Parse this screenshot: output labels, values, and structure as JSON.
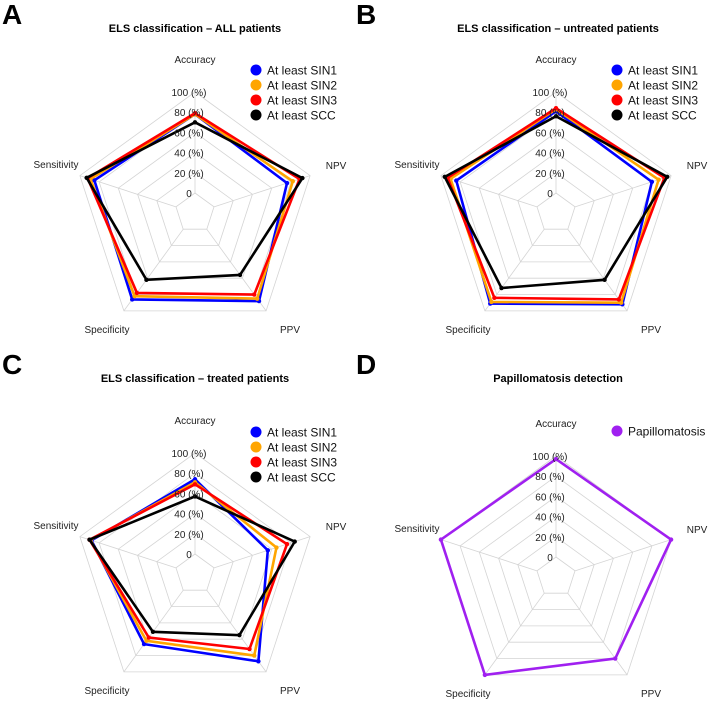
{
  "chart_data": [
    {
      "type": "radar",
      "panel_letter": "A",
      "title": "ELS classification – ALL patients",
      "axes": [
        "Accuracy",
        "NPV",
        "PPV",
        "Specificity",
        "Sensitivity"
      ],
      "tick_labels": [
        "0",
        "20 (%)",
        "40 (%)",
        "60 (%)",
        "80 (%)",
        "100 (%)"
      ],
      "range": [
        0,
        100
      ],
      "legend_position": "top-right",
      "series": [
        {
          "name": "At least SIN1",
          "color": "#0000ff",
          "values": [
            78,
            76,
            88,
            86,
            85
          ]
        },
        {
          "name": "At least SIN2",
          "color": "#ffa500",
          "values": [
            78,
            82,
            85,
            82,
            89
          ]
        },
        {
          "name": "At least SIN3",
          "color": "#ff0000",
          "values": [
            79,
            89,
            80,
            78,
            92
          ]
        },
        {
          "name": "At least SCC",
          "color": "#000000",
          "values": [
            70,
            92,
            56,
            62,
            93
          ]
        }
      ]
    },
    {
      "type": "radar",
      "panel_letter": "B",
      "title": "ELS classification – untreated patients",
      "axes": [
        "Accuracy",
        "NPV",
        "PPV",
        "Specificity",
        "Sensitivity"
      ],
      "tick_labels": [
        "0",
        "20 (%)",
        "40 (%)",
        "60 (%)",
        "80 (%)",
        "100 (%)"
      ],
      "range": [
        0,
        100
      ],
      "legend_position": "top-right",
      "series": [
        {
          "name": "At least SIN1",
          "color": "#0000ff",
          "values": [
            81,
            80,
            92,
            91,
            84
          ]
        },
        {
          "name": "At least SIN2",
          "color": "#ffa500",
          "values": [
            83,
            87,
            90,
            89,
            90
          ]
        },
        {
          "name": "At least SIN3",
          "color": "#ff0000",
          "values": [
            84,
            93,
            86,
            84,
            93
          ]
        },
        {
          "name": "At least SCC",
          "color": "#000000",
          "values": [
            76,
            96,
            62,
            72,
            96
          ]
        }
      ]
    },
    {
      "type": "radar",
      "panel_letter": "C",
      "title": "ELS classification – treated patients",
      "axes": [
        "Accuracy",
        "NPV",
        "PPV",
        "Specificity",
        "Sensitivity"
      ],
      "tick_labels": [
        "0",
        "20 (%)",
        "40 (%)",
        "60 (%)",
        "80 (%)",
        "100 (%)"
      ],
      "range": [
        0,
        100
      ],
      "legend_position": "top-right",
      "series": [
        {
          "name": "At least SIN1",
          "color": "#0000ff",
          "values": [
            74,
            56,
            87,
            66,
            88
          ]
        },
        {
          "name": "At least SIN2",
          "color": "#ffa500",
          "values": [
            71,
            65,
            80,
            62,
            89
          ]
        },
        {
          "name": "At least SIN3",
          "color": "#ff0000",
          "values": [
            69,
            76,
            72,
            58,
            90
          ]
        },
        {
          "name": "At least SCC",
          "color": "#000000",
          "values": [
            57,
            84,
            55,
            51,
            90
          ]
        }
      ]
    },
    {
      "type": "radar",
      "panel_letter": "D",
      "title": "Papillomatosis detection",
      "axes": [
        "Accuracy",
        "NPV",
        "PPV",
        "Specificity",
        "Sensitivity"
      ],
      "tick_labels": [
        "0",
        "20 (%)",
        "40 (%)",
        "60 (%)",
        "80 (%)",
        "100 (%)"
      ],
      "range": [
        0,
        100
      ],
      "legend_position": "top-right",
      "series": [
        {
          "name": "Papillomatosis",
          "color": "#a020f0",
          "values": [
            97,
            100,
            80,
            100,
            100
          ]
        }
      ]
    }
  ]
}
